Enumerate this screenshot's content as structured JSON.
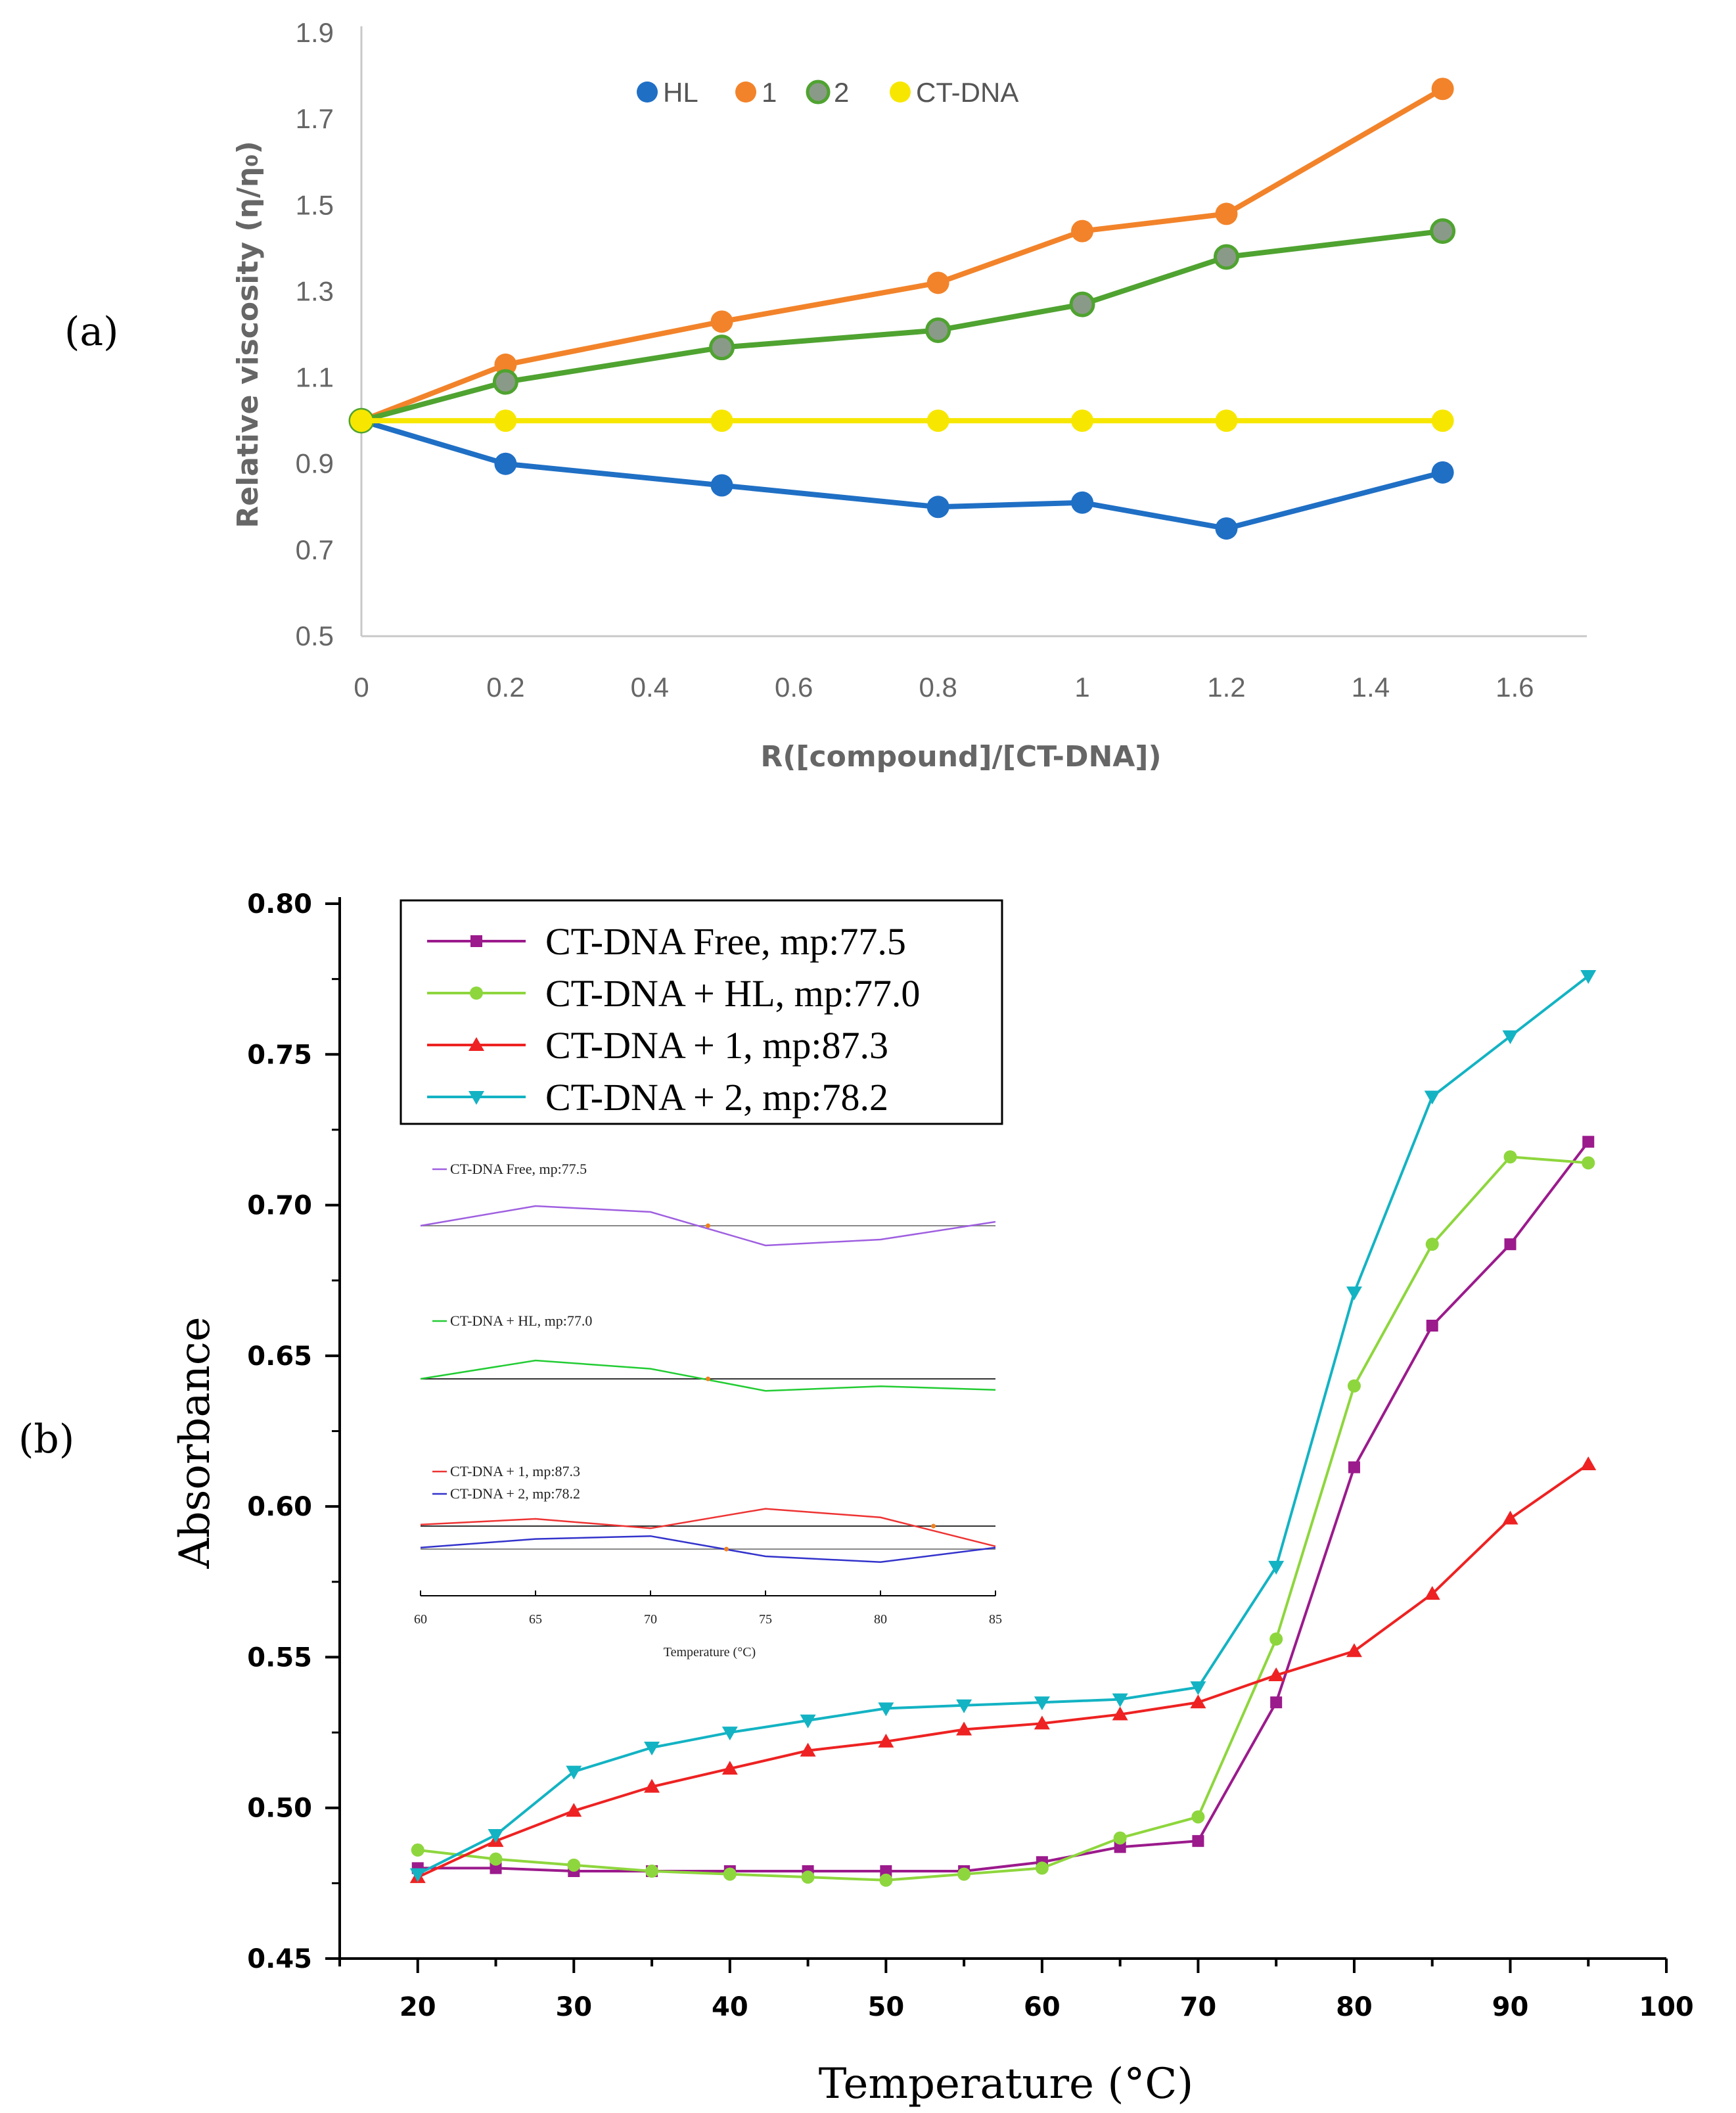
{
  "panel_labels": {
    "a": "(a)",
    "b": "(b)"
  },
  "colors": {
    "HL": "#1f6fc5",
    "1": "#f2832a",
    "2": "#4fa330",
    "2_marker": "#8a9a88",
    "CT-DNA": "#f7e700",
    "free": "#9b1a8c",
    "hl_b": "#8ed63d",
    "one_b": "#ee2222",
    "two_b": "#13b3c3",
    "inset_free": "#9f5fe0",
    "inset_hl": "#22cc33",
    "inset_one": "#ee3333",
    "inset_two": "#3333cc",
    "inset_cross": "#f08020"
  },
  "chart_data": [
    {
      "id": "a",
      "type": "line",
      "title": "",
      "xlabel": "R([compound]/[CT-DNA])",
      "ylabel": "Relative viscosity (η/η₀)",
      "xlim": [
        0,
        1.7
      ],
      "ylim": [
        0.5,
        1.9
      ],
      "x_ticks": [
        "0",
        "0.2",
        "0.4",
        "0.6",
        "0.8",
        "1",
        "1.2",
        "1.4",
        "1.6"
      ],
      "y_ticks": [
        "0.5",
        "0.7",
        "0.9",
        "1.1",
        "1.3",
        "1.5",
        "1.7",
        "1.9"
      ],
      "x": [
        0,
        0.2,
        0.5,
        0.8,
        1.0,
        1.2,
        1.5
      ],
      "legend_position": "top-center",
      "series": [
        {
          "key": "HL",
          "name": "HL",
          "values": [
            1.0,
            0.9,
            0.85,
            0.8,
            0.81,
            0.75,
            0.88
          ]
        },
        {
          "key": "1",
          "name": "1",
          "values": [
            1.0,
            1.13,
            1.23,
            1.32,
            1.44,
            1.48,
            1.77
          ]
        },
        {
          "key": "2",
          "name": "2",
          "values": [
            1.0,
            1.09,
            1.17,
            1.21,
            1.27,
            1.38,
            1.44
          ]
        },
        {
          "key": "CT-DNA",
          "name": "CT-DNA",
          "values": [
            1.0,
            1.0,
            1.0,
            1.0,
            1.0,
            1.0,
            1.0
          ]
        }
      ]
    },
    {
      "id": "b",
      "type": "line",
      "title": "",
      "xlabel": "Temperature (°C)",
      "ylabel": "Absorbance",
      "xlim": [
        15,
        100
      ],
      "ylim": [
        0.45,
        0.8
      ],
      "x_ticks": [
        "20",
        "30",
        "40",
        "50",
        "60",
        "70",
        "80",
        "90",
        "100"
      ],
      "y_ticks": [
        "0.45",
        "0.50",
        "0.55",
        "0.60",
        "0.65",
        "0.70",
        "0.75",
        "0.80"
      ],
      "x": [
        20,
        25,
        30,
        35,
        40,
        45,
        50,
        55,
        60,
        65,
        70,
        75,
        80,
        85,
        90,
        95
      ],
      "legend_position": "top-left",
      "series": [
        {
          "key": "free",
          "name": "CT-DNA Free, mp:77.5",
          "marker": "square",
          "values": [
            0.48,
            0.48,
            0.479,
            0.479,
            0.479,
            0.479,
            0.479,
            0.479,
            0.482,
            0.487,
            0.489,
            0.535,
            0.613,
            0.66,
            0.687,
            0.721
          ]
        },
        {
          "key": "hl_b",
          "name": "CT-DNA + HL, mp:77.0",
          "marker": "circle",
          "values": [
            0.486,
            0.483,
            0.481,
            0.479,
            0.478,
            0.477,
            0.476,
            0.478,
            0.48,
            0.49,
            0.497,
            0.556,
            0.64,
            0.687,
            0.716,
            0.714
          ]
        },
        {
          "key": "one_b",
          "name": "CT-DNA + 1, mp:87.3",
          "marker": "triangle-up",
          "values": [
            0.477,
            0.489,
            0.499,
            0.507,
            0.513,
            0.519,
            0.522,
            0.526,
            0.528,
            0.531,
            0.535,
            0.544,
            0.552,
            0.571,
            0.596,
            0.614
          ]
        },
        {
          "key": "two_b",
          "name": "CT-DNA + 2, mp:78.2",
          "marker": "triangle-down",
          "values": [
            0.478,
            0.491,
            0.512,
            0.52,
            0.525,
            0.529,
            0.533,
            0.534,
            0.535,
            0.536,
            0.54,
            0.58,
            0.671,
            0.736,
            0.756,
            0.776
          ]
        }
      ]
    },
    {
      "id": "b-inset",
      "type": "line",
      "title": "",
      "xlabel": "Temperature (°C)",
      "ylabel": "",
      "xlim": [
        60,
        85
      ],
      "x_ticks": [
        "60",
        "65",
        "70",
        "75",
        "80",
        "85"
      ],
      "x": [
        60,
        65,
        70,
        75,
        80,
        85
      ],
      "series": [
        {
          "key": "inset_free",
          "name": "CT-DNA Free, mp:77.5",
          "values": [
            0.0,
            1.0,
            0.7,
            -1.0,
            -0.7,
            0.2
          ],
          "crossing": 72.5
        },
        {
          "key": "inset_hl",
          "name": "CT-DNA + HL, mp:77.0",
          "values": [
            0.0,
            1.0,
            0.55,
            -0.65,
            -0.4,
            -0.6
          ],
          "crossing": 72.5
        },
        {
          "key": "inset_one",
          "name": "CT-DNA + 1, mp:87.3",
          "values": [
            0.1,
            0.5,
            -0.15,
            1.2,
            0.6,
            -1.4
          ],
          "crossing": 82.3
        },
        {
          "key": "inset_two",
          "name": "CT-DNA + 2, mp:78.2",
          "values": [
            0.1,
            0.7,
            0.9,
            -0.5,
            -0.9,
            0.1
          ],
          "crossing": 73.3
        }
      ]
    }
  ]
}
